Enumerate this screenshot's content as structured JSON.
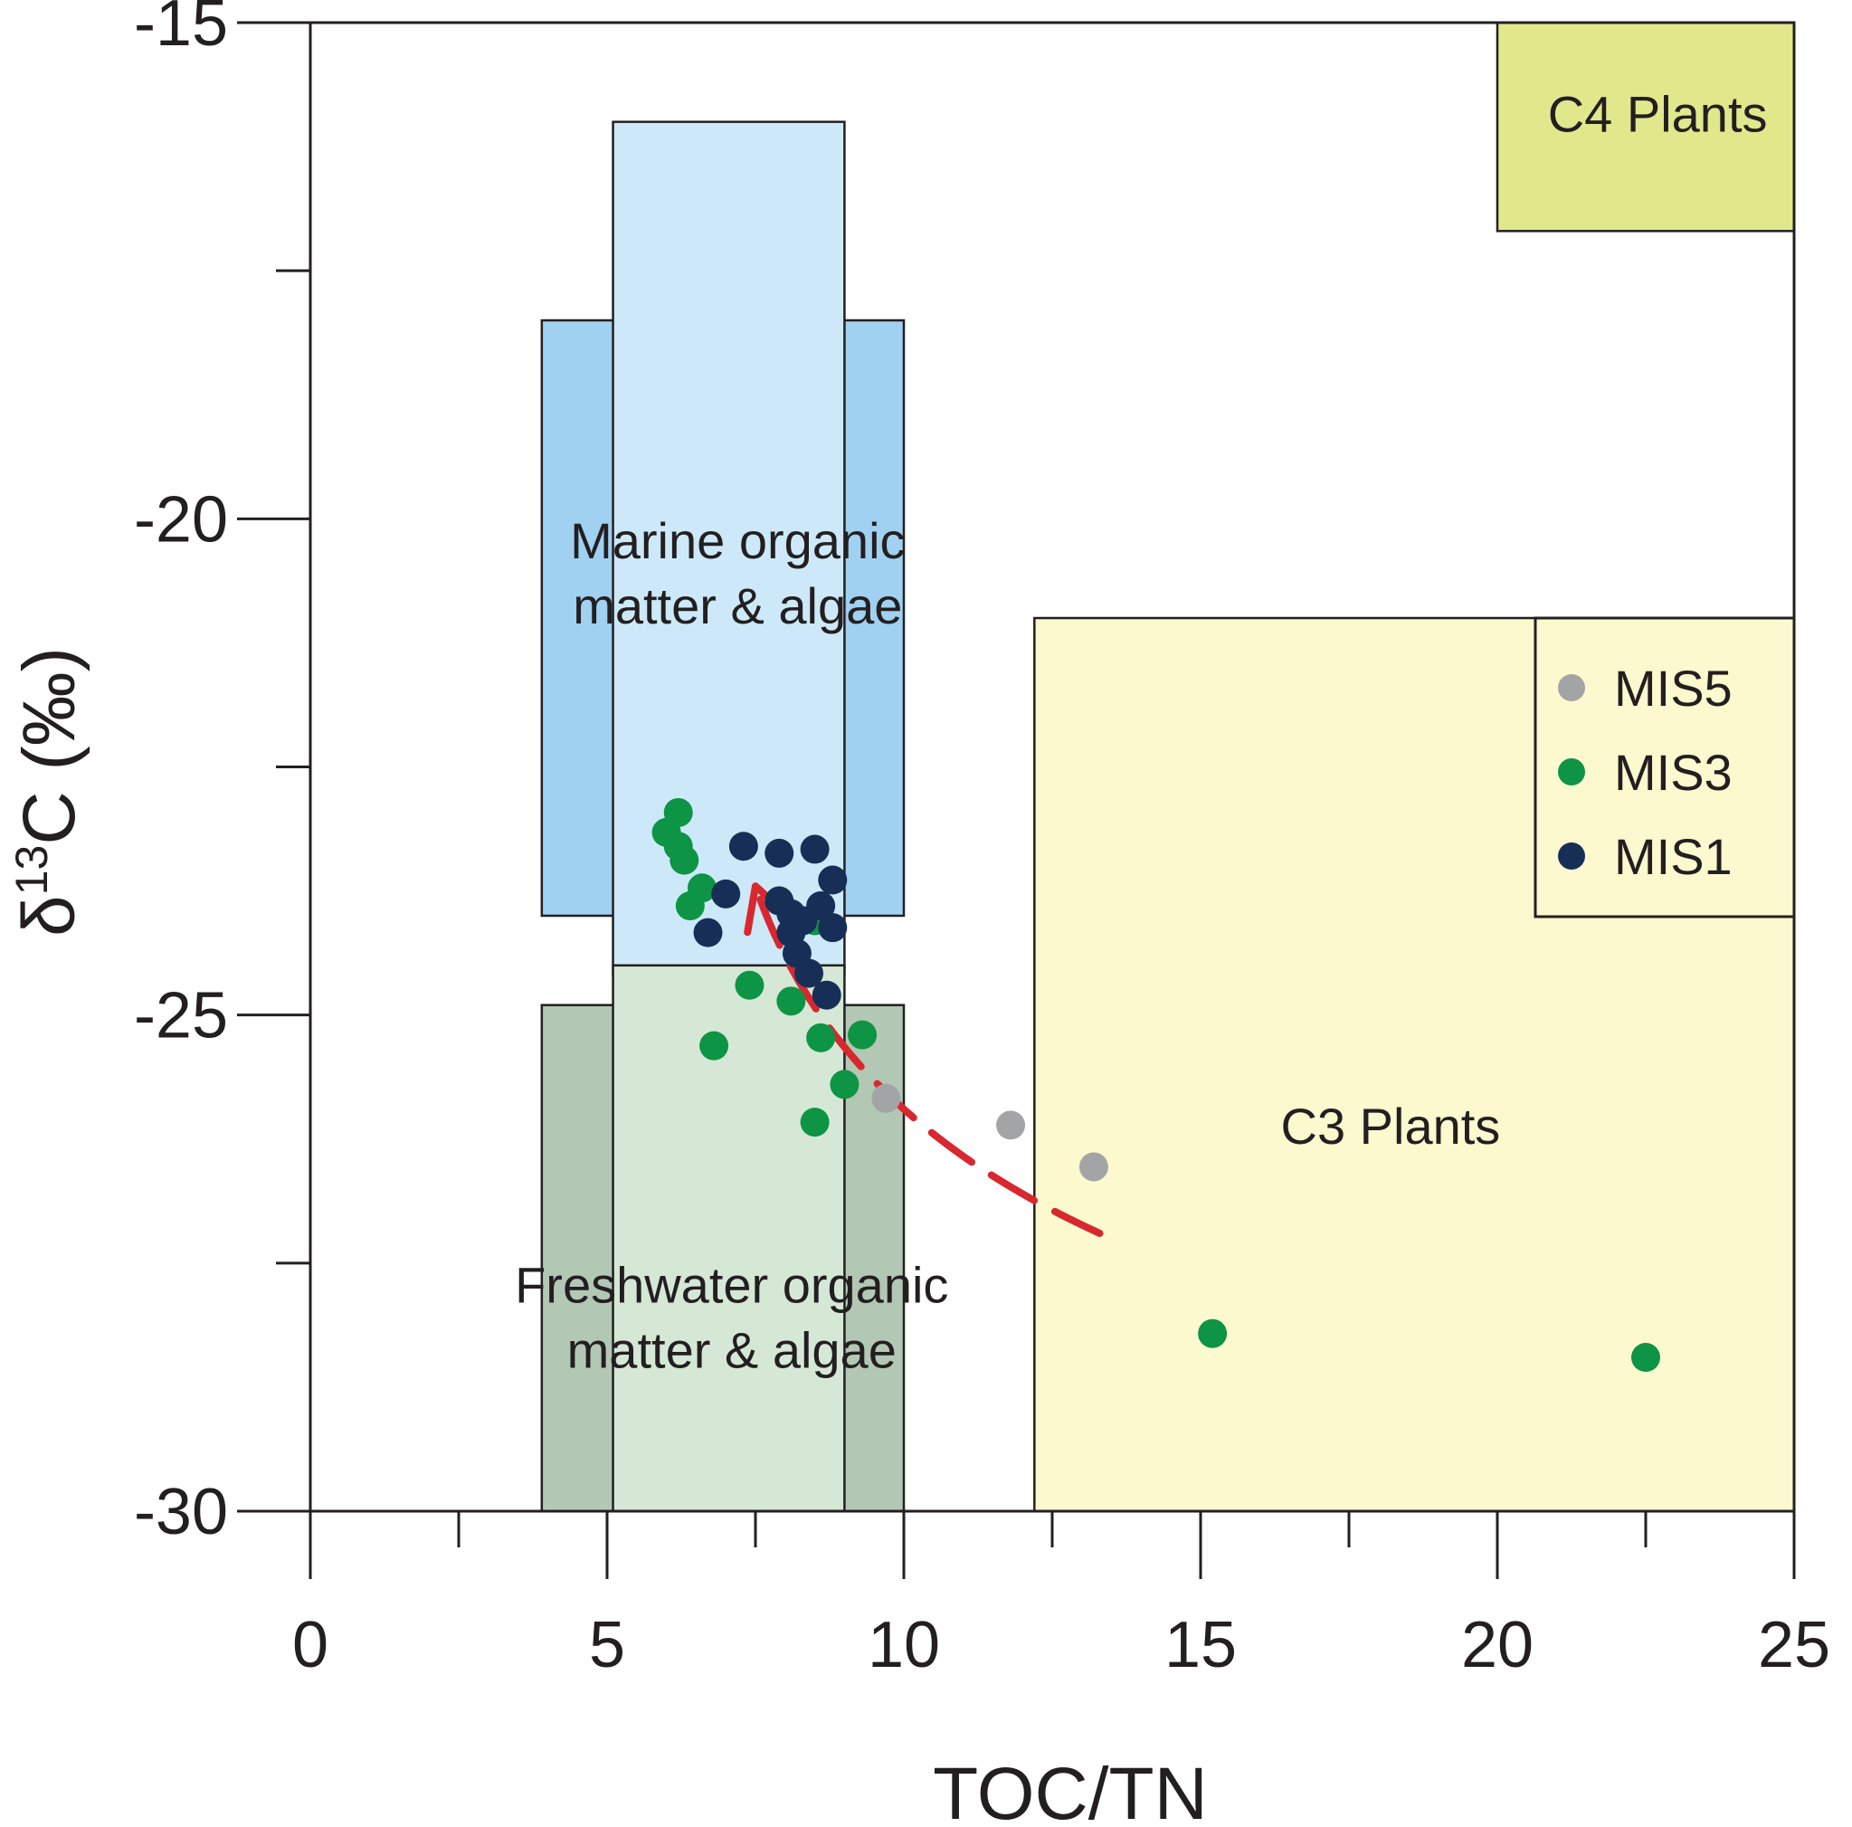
{
  "chart_data": {
    "type": "scatter",
    "title": "",
    "xlabel": "TOC/TN",
    "ylabel": {
      "prefix": "δ",
      "sup": "13",
      "suffix": "C (‰)"
    },
    "xlim": [
      0,
      25
    ],
    "ylim": [
      -30,
      -15
    ],
    "x_ticks": [
      0,
      5,
      10,
      15,
      20,
      25
    ],
    "x_minor_ticks": [
      2.5,
      7.5,
      12.5,
      17.5,
      22.5
    ],
    "y_ticks": [
      -15,
      -20,
      -25,
      -30
    ],
    "y_minor_ticks": [
      -17.5,
      -22.5,
      -27.5
    ],
    "grid": false,
    "legend_position": "top-right",
    "regions": [
      {
        "name": "marine-outer",
        "x": [
          3.9,
          10
        ],
        "y": [
          -24,
          -18
        ],
        "color": "#a0d1f1"
      },
      {
        "name": "marine-inner",
        "x": [
          5.1,
          9
        ],
        "y": [
          -24.6,
          -16
        ],
        "color": "#cde9f9",
        "label": [
          "Marine organic",
          "matter & algae"
        ],
        "label_at": [
          7.2,
          -20.4
        ]
      },
      {
        "name": "freshwater-outer",
        "x": [
          3.9,
          10
        ],
        "y": [
          -30,
          -24.9
        ],
        "color": "#b3c7b5"
      },
      {
        "name": "freshwater-inner",
        "x": [
          5.1,
          9
        ],
        "y": [
          -30,
          -24.5
        ],
        "color": "#d5e8d6",
        "label": [
          "Freshwater organic",
          "matter & algae"
        ],
        "label_at": [
          7.1,
          -27.9
        ]
      },
      {
        "name": "c4-plants",
        "x": [
          20,
          25
        ],
        "y": [
          -17.1,
          -15
        ],
        "color": "#e1e88c",
        "label": [
          "C4 Plants"
        ],
        "label_at": [
          22.7,
          -16.1
        ]
      },
      {
        "name": "c3-plants",
        "x": [
          12.2,
          25
        ],
        "y": [
          -30,
          -21
        ],
        "color": "#fcf9cf",
        "label": [
          "C3 Plants"
        ],
        "label_at": [
          18.2,
          -26.3
        ]
      }
    ],
    "series": [
      {
        "name": "MIS5",
        "color": "#a3a4a6",
        "points": [
          [
            9.7,
            -25.84
          ],
          [
            11.8,
            -26.11
          ],
          [
            13.2,
            -26.53
          ]
        ]
      },
      {
        "name": "MIS3",
        "color": "#0d9444",
        "points": [
          [
            6.2,
            -22.96
          ],
          [
            6.0,
            -23.16
          ],
          [
            6.2,
            -23.3
          ],
          [
            6.3,
            -23.44
          ],
          [
            6.6,
            -23.72
          ],
          [
            6.4,
            -23.9
          ],
          [
            8.5,
            -24.05
          ],
          [
            7.4,
            -24.7
          ],
          [
            8.1,
            -24.86
          ],
          [
            6.8,
            -25.31
          ],
          [
            8.6,
            -25.23
          ],
          [
            9.3,
            -25.2
          ],
          [
            9.0,
            -25.7
          ],
          [
            8.5,
            -26.08
          ],
          [
            15.2,
            -28.21
          ],
          [
            22.5,
            -28.45
          ]
        ]
      },
      {
        "name": "MIS1",
        "color": "#172f57",
        "points": [
          [
            7.3,
            -23.3
          ],
          [
            7.9,
            -23.37
          ],
          [
            8.5,
            -23.33
          ],
          [
            8.8,
            -23.64
          ],
          [
            7.0,
            -23.78
          ],
          [
            7.9,
            -23.85
          ],
          [
            8.1,
            -23.98
          ],
          [
            8.6,
            -23.9
          ],
          [
            8.8,
            -24.12
          ],
          [
            6.7,
            -24.17
          ],
          [
            8.1,
            -24.17
          ],
          [
            8.2,
            -24.38
          ],
          [
            8.4,
            -24.58
          ],
          [
            8.7,
            -24.8
          ],
          [
            8.3,
            -24.05
          ]
        ]
      }
    ],
    "arrow_path": [
      [
        13.3,
        -27.2
      ],
      [
        10.0,
        -26.3
      ],
      [
        8.3,
        -25.1
      ],
      [
        7.5,
        -23.7
      ]
    ],
    "arrow_color": "#d7282f"
  }
}
